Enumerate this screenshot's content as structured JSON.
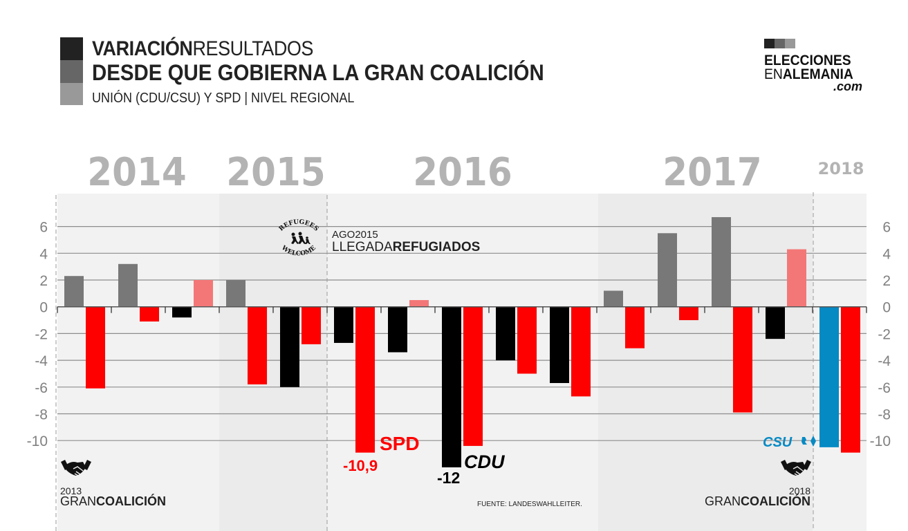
{
  "header": {
    "title_bold": "VARIACIÓN",
    "title_regular": "RESULTADOS",
    "subtitle": "DESDE QUE GOBIERNA LA GRAN COALICIÓN",
    "subheading": "UNIÓN (CDU/CSU) Y SPD | NIVEL REGIONAL",
    "swatch_colors": [
      "#222222",
      "#666666",
      "#999999"
    ]
  },
  "logo": {
    "line1": "ELECCIONES",
    "line2_regular": "EN",
    "line2_bold": "ALEMANIA",
    "line3": ".com"
  },
  "annotations": {
    "refugees_logo_top": "REFUGEES",
    "refugees_logo_bottom": "WELCOME",
    "refugees_date": "AGO2015",
    "refugees_regular": "LLEGADA",
    "refugees_bold": "REFUGIADOS",
    "spd_label": "SPD",
    "spd_value": "-10,9",
    "cdu_label": "CDU",
    "cdu_value": "-12",
    "csu_label": "CSU",
    "coalition_left_year": "2013",
    "coalition_left_regular": "GRAN",
    "coalition_left_bold": "COALICIÓN",
    "coalition_right_year": "2018",
    "coalition_right_regular": "GRAN",
    "coalition_right_bold": "COALICIÓN",
    "source": "FUENTE: LANDESWAHLLEITER."
  },
  "chart_data": {
    "type": "bar",
    "title": "VARIACIÓN RESULTADOS DESDE QUE GOBIERNA LA GRAN COALICIÓN",
    "subtitle": "UNIÓN (CDU/CSU) Y SPD | NIVEL REGIONAL",
    "xlabel": "",
    "ylabel": "",
    "ylim": [
      -12,
      7
    ],
    "yticks": [
      6,
      4,
      2,
      0,
      -2,
      -4,
      -6,
      -8,
      -10
    ],
    "ytick_labels": [
      "6",
      "4",
      "2",
      "0",
      "-2",
      "-4",
      "-6",
      "-8",
      "-10"
    ],
    "grid": true,
    "year_labels": [
      {
        "label": "2014",
        "size": "large",
        "groups": [
          0,
          2
        ]
      },
      {
        "label": "2015",
        "size": "large",
        "groups": [
          3,
          4
        ]
      },
      {
        "label": "2016",
        "size": "large",
        "groups": [
          5,
          9
        ]
      },
      {
        "label": "2017",
        "size": "large",
        "groups": [
          10,
          13
        ]
      },
      {
        "label": "2018",
        "size": "small",
        "groups": [
          14,
          14
        ]
      }
    ],
    "colors": {
      "union_gain": "#787878",
      "union_loss": "#000000",
      "spd_gain": "#f47777",
      "spd_loss": "#ff0000",
      "csu": "#068ac4",
      "band_light": "#f2f2f2",
      "band_dark": "#ebebeb"
    },
    "groups": [
      {
        "union": 2.3,
        "spd": -6.1
      },
      {
        "union": 3.2,
        "spd": -1.1
      },
      {
        "union": -0.8,
        "spd": 2.0
      },
      {
        "union": 2.0,
        "spd": -5.8
      },
      {
        "union": -6.0,
        "spd": -2.8
      },
      {
        "union": -2.7,
        "spd": -10.9
      },
      {
        "union": -3.4,
        "spd": 0.5
      },
      {
        "union": -12.0,
        "spd": -10.4
      },
      {
        "union": -4.0,
        "spd": -5.0
      },
      {
        "union": -5.7,
        "spd": -6.7
      },
      {
        "union": 1.2,
        "spd": -3.1
      },
      {
        "union": 5.5,
        "spd": -1.0
      },
      {
        "union": 6.7,
        "spd": -7.9
      },
      {
        "union": -2.4,
        "spd": 4.3
      },
      {
        "union": -10.5,
        "spd": -10.9,
        "union_party": "CSU"
      }
    ],
    "series": [
      {
        "name": "Unión (CDU/CSU)",
        "values": [
          2.3,
          3.2,
          -0.8,
          2.0,
          -6.0,
          -2.7,
          -3.4,
          -12.0,
          -4.0,
          -5.7,
          1.2,
          5.5,
          6.7,
          -2.4,
          -10.5
        ]
      },
      {
        "name": "SPD",
        "values": [
          -6.1,
          -1.1,
          2.0,
          -5.8,
          -2.8,
          -10.9,
          0.5,
          -10.4,
          -5.0,
          -6.7,
          -3.1,
          -1.0,
          -7.9,
          4.3,
          -10.9
        ]
      }
    ],
    "events": [
      {
        "label": "AGO2015 LLEGADA REFUGIADOS",
        "after_group": 4
      },
      {
        "label": "2013 GRAN COALICIÓN",
        "at_group": 0
      },
      {
        "label": "2018 GRAN COALICIÓN",
        "after_group": 13
      }
    ]
  }
}
